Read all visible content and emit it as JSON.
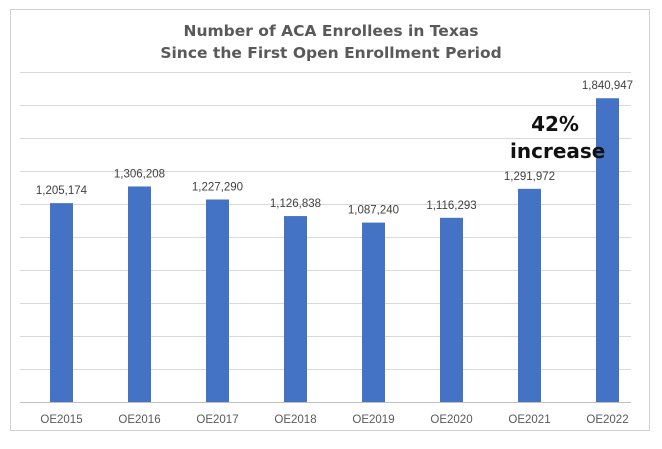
{
  "chart_data": {
    "type": "bar",
    "title_line1": "Number of ACA Enrollees in Texas",
    "title_line2": "Since the First Open Enrollment Period",
    "categories": [
      "OE2015",
      "OE2016",
      "OE2017",
      "OE2018",
      "OE2019",
      "OE2020",
      "OE2021",
      "OE2022"
    ],
    "values": [
      1205174,
      1306208,
      1227290,
      1126838,
      1087240,
      1116293,
      1291972,
      1840947
    ],
    "data_labels": [
      "1,205,174",
      "1,306,208",
      "1,227,290",
      "1,126,838",
      "1,087,240",
      "1,116,293",
      "1,291,972",
      "1,840,947"
    ],
    "annotation_line1": "42%",
    "annotation_line2": "increase",
    "ylim": [
      0,
      2000000
    ],
    "gridlines": true,
    "y_tick_labels_shown": false,
    "bar_color": "#4472C4",
    "gridline_color": "#d9d9d9"
  }
}
